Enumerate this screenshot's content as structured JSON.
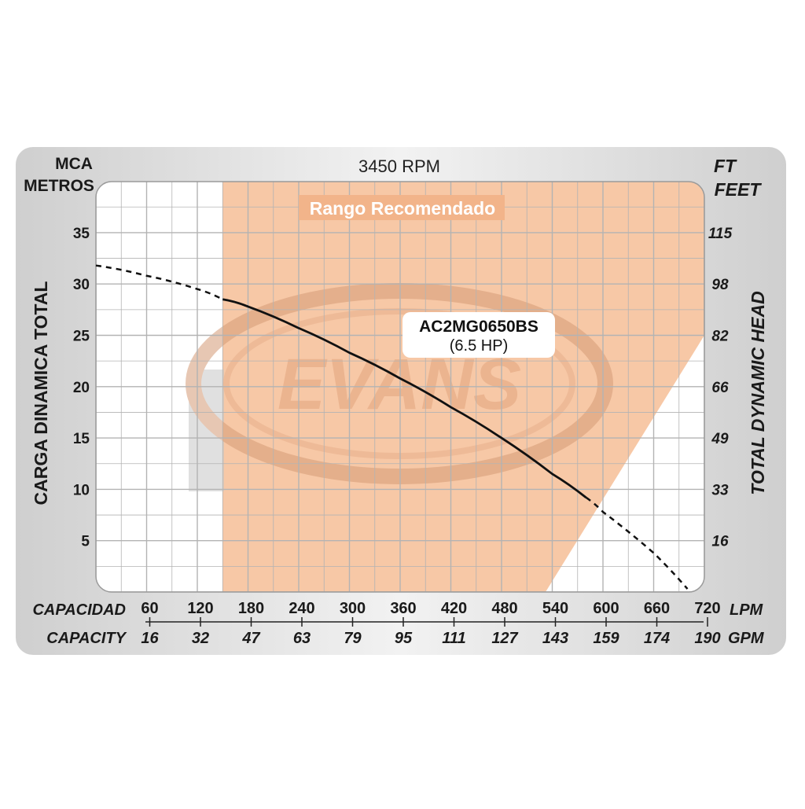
{
  "chart_data": {
    "type": "line",
    "subtitle": "3450 RPM",
    "recommended_range_label": "Rango Recomendado",
    "model": {
      "name": "AC2MG0650BS",
      "power": "(6.5 HP)"
    },
    "brand_watermark": "EVANS",
    "y_left": {
      "unit_lines": [
        "MCA",
        "METROS"
      ],
      "label": "CARGA  DINAMICA TOTAL",
      "ticks": [
        5,
        10,
        15,
        20,
        25,
        30,
        35
      ],
      "range": [
        0,
        39
      ]
    },
    "y_right": {
      "unit_lines": [
        "FT",
        "FEET"
      ],
      "label": "TOTAL  DYNAMIC  HEAD",
      "ticks": [
        "16",
        "33",
        "49",
        "66",
        "82",
        "98",
        "115"
      ]
    },
    "x_primary": {
      "label": "CAPACIDAD",
      "unit": "LPM",
      "ticks": [
        60,
        120,
        180,
        240,
        300,
        360,
        420,
        480,
        540,
        600,
        660,
        720
      ],
      "range": [
        0,
        720
      ]
    },
    "x_secondary": {
      "label": "CAPACITY",
      "unit": "GPM",
      "ticks": [
        "16",
        "32",
        "47",
        "63",
        "79",
        "95",
        "111",
        "127",
        "143",
        "159",
        "174",
        "190"
      ]
    },
    "recommended_range": {
      "x_start": 150,
      "x_end_bottom": 505,
      "x_end_top": 720,
      "y_diag_top": 25
    },
    "series": [
      {
        "values_x": [
          0,
          60,
          120,
          150,
          180,
          240,
          300,
          360,
          420,
          480,
          540,
          580,
          600,
          660,
          700
        ],
        "values_y": [
          31.8,
          30.8,
          29.5,
          28.5,
          27.8,
          25.7,
          23.3,
          20.8,
          18.0,
          15.0,
          11.5,
          9.2,
          7.8,
          3.8,
          0.3
        ]
      }
    ],
    "solid_segment": [
      150,
      580
    ],
    "colors": {
      "range_fill": "#f7c8a6",
      "curve": "#111111",
      "grid": "#b3b3b3",
      "frame_bg": "#dcdcdc"
    }
  }
}
